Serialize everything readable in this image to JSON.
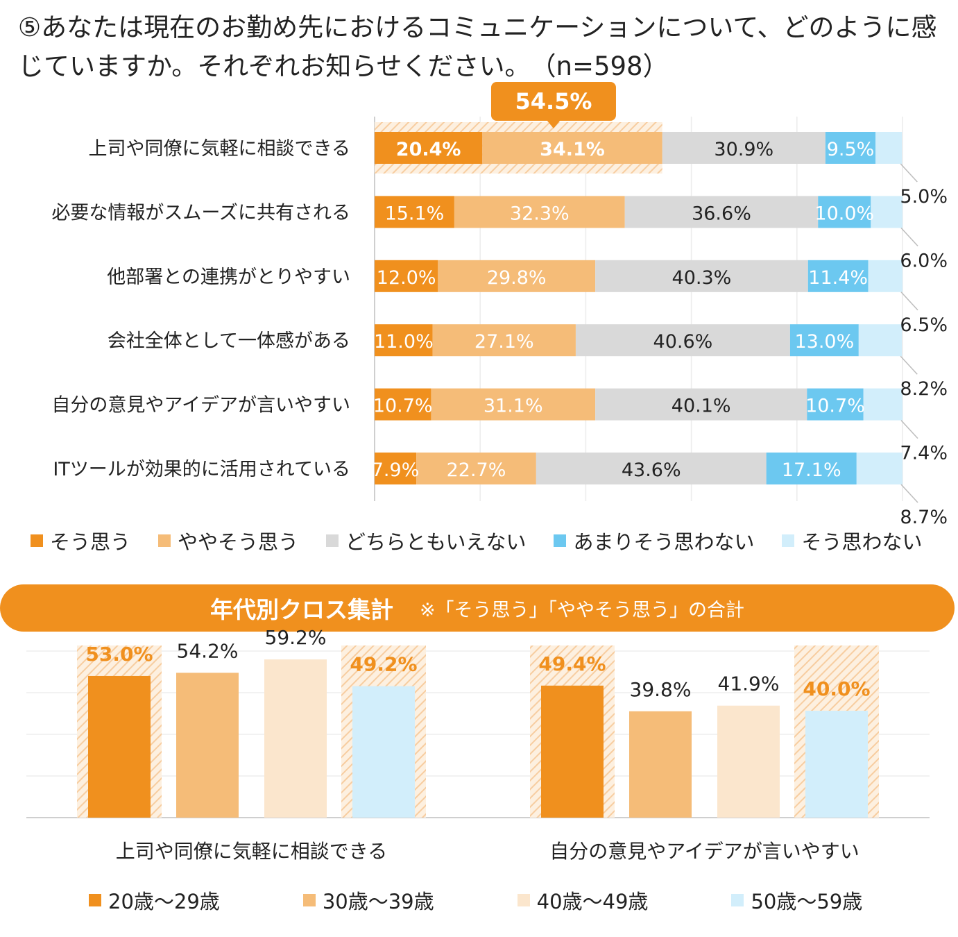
{
  "title": {
    "line1": "⑤あなたは現在のお勤め先におけるコミュニケーションについて、どのように感",
    "line2": "じていますか。それぞれお知らせください。　（n=598）"
  },
  "colors": {
    "strong_agree": "#f0901e",
    "agree": "#f5bc78",
    "neutral": "#d9d9d9",
    "disagree": "#6cc8f0",
    "strong_disagree": "#d2eefb",
    "age40": "#fbe6cd",
    "highlight_text": "#f0901e",
    "callout": "#f0901e"
  },
  "chart_data": [
    {
      "type": "bar",
      "orientation": "horizontal-stacked-100",
      "title": "⑤あなたは現在のお勤め先におけるコミュニケーションについて、どのように感じていますか。それぞれお知らせください。　（n=598）",
      "categories": [
        "上司や同僚に気軽に相談できる",
        "必要な情報がスムーズに共有される",
        "他部署との連携がとりやすい",
        "会社全体として一体感がある",
        "自分の意見やアイデアが言いやすい",
        "ITツールが効果的に活用されている"
      ],
      "series": [
        {
          "name": "そう思う",
          "values": [
            20.4,
            15.1,
            12.0,
            11.0,
            10.7,
            7.9
          ]
        },
        {
          "name": "ややそう思う",
          "values": [
            34.1,
            32.3,
            29.8,
            27.1,
            31.1,
            22.7
          ]
        },
        {
          "name": "どちらともいえない",
          "values": [
            30.9,
            36.6,
            40.3,
            40.6,
            40.1,
            43.6
          ]
        },
        {
          "name": "あまりそう思わない",
          "values": [
            9.5,
            10.0,
            11.4,
            13.0,
            10.7,
            17.1
          ]
        },
        {
          "name": "そう思わない",
          "values": [
            5.0,
            6.0,
            6.5,
            8.2,
            7.4,
            8.7
          ]
        }
      ],
      "labels": [
        [
          "20.4%",
          "34.1%",
          "30.9%",
          "9.5%",
          "5.0%"
        ],
        [
          "15.1%",
          "32.3%",
          "36.6%",
          "10.0%",
          "6.0%"
        ],
        [
          "12.0%",
          "29.8%",
          "40.3%",
          "11.4%",
          "6.5%"
        ],
        [
          "11.0%",
          "27.1%",
          "40.6%",
          "13.0%",
          "8.2%"
        ],
        [
          "10.7%",
          "31.1%",
          "40.1%",
          "10.7%",
          "7.4%"
        ],
        [
          "7.9%",
          "22.7%",
          "43.6%",
          "17.1%",
          "8.7%"
        ]
      ],
      "callout": {
        "label": "54.5%",
        "row": 0
      },
      "xlim": [
        0,
        100
      ],
      "grid": true
    },
    {
      "type": "bar",
      "title": "年代別クロス集計",
      "note": "※「そう思う」「ややそう思う」の合計",
      "groups": [
        "上司や同僚に気軽に相談できる",
        "自分の意見やアイデアが言いやすい"
      ],
      "series": [
        {
          "name": "20歳～29歳",
          "values": [
            53.0,
            49.4
          ],
          "labels": [
            "53.0%",
            "49.4%"
          ],
          "highlight": true
        },
        {
          "name": "30歳～39歳",
          "values": [
            54.2,
            39.8
          ],
          "labels": [
            "54.2%",
            "39.8%"
          ],
          "highlight": false
        },
        {
          "name": "40歳～49歳",
          "values": [
            59.2,
            41.9
          ],
          "labels": [
            "59.2%",
            "41.9%"
          ],
          "highlight": false
        },
        {
          "name": "50歳～59歳",
          "values": [
            49.2,
            40.0
          ],
          "labels": [
            "49.2%",
            "40.0%"
          ],
          "highlight": true
        }
      ],
      "ylim": [
        0,
        100
      ],
      "grid": true
    }
  ]
}
